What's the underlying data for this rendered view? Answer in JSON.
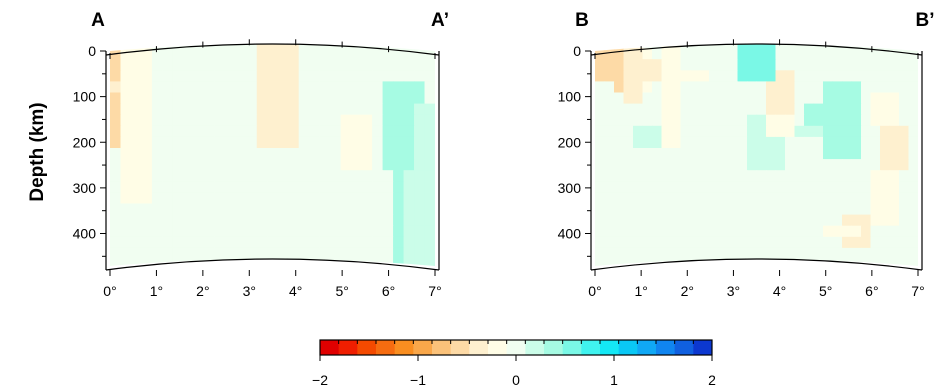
{
  "chart_data": {
    "type": "heatmap",
    "ylabel": "Depth (km)",
    "y_ticks": [
      0,
      100,
      200,
      300,
      400
    ],
    "y_range": [
      0,
      480
    ],
    "x_ticks": [
      "0°",
      "1°",
      "2°",
      "3°",
      "4°",
      "5°",
      "6°",
      "7°"
    ],
    "x_range": [
      0,
      7
    ],
    "colorbar": {
      "ticks": [
        "−2",
        "−1",
        "0",
        "1",
        "2"
      ],
      "range": [
        -2,
        2
      ],
      "colors": [
        "#e00000",
        "#ef1e00",
        "#f44a00",
        "#f66c10",
        "#f98e20",
        "#f9a74a",
        "#fbc27a",
        "#fddaa6",
        "#fef0cf",
        "#fffde6",
        "#f1fef1",
        "#cbfde9",
        "#a6fbe3",
        "#7af8e6",
        "#40f3ef",
        "#14e8f5",
        "#0ac8f5",
        "#10a8f5",
        "#1085f0",
        "#1060e0",
        "#0c38d0"
      ]
    },
    "sections": [
      {
        "start_label": "A",
        "end_label": "A’",
        "cols": 31,
        "rows": 20,
        "grid_ranges": [
          "1,0,3,0,6,-0.5",
          "5,0,7,0,6,-0.3",
          "8,4,9,7,9,0.3",
          "9,7,11,8,11,0.3",
          "0,19,20,30,30,0",
          "0,19,20,0,19,-0.05",
          "13,0,14,7,10,0.4",
          "14,2,16,6,8,0.6",
          "16,3,17,6,7,0.3",
          "12,5,18,9,12,0.3",
          "17,10,22,21,23,0.3",
          "18,10,21,19,20,0.4",
          "15,13,18,20,22,0.2",
          "20,12,25,22,24,0.35",
          "22,13,24,20,21,0.5",
          "0,24,20,26,30,0",
          "4,25,6,27,29,0.3",
          "6,26,8,28,30,0.2",
          "0,9,3,0,3,-0.6",
          "0,1,2,1,2,-0.7",
          "1,1,2,2,3,-0.6",
          "3,1,5,1,3,-0.6",
          "4,4,9,0,2,-0.3",
          "0,14,10,1,3,-0.1",
          "0,9,13,14,17,-0.3",
          "7,11,16,22,24,-0.1",
          "2,0,4,10,11,0.2",
          "3,0,8,4,6,-0.3",
          "4,1,6,8,9,-0.4",
          "6,2,9,10,14,-0.4",
          "8,3,9,12,14,-0.4",
          "1,0,3,16,18,0.2",
          "3,0,4,17,18,-0.4",
          "7,3,5,19,20,0.2",
          "10,8,15,27,29,0.3",
          "4,11,12,26,28,0.3",
          "18,6,10,0,3,0.2",
          "20,6,9,0,2,-0.3",
          "19,10,13,19,21,0.3",
          "17,2,6,22,24,-0.2",
          "3,0,2,25,27,0.2",
          "3,2,4,25,26,0.4",
          "12,1,3,26,28,0.3"
        ]
      },
      {
        "start_label": "B",
        "end_label": "B’",
        "cols": 34,
        "rows": 20,
        "grid_ranges": [
          "0,19,20,33,33,0.3",
          "0,3,18,30,33,0.4",
          "5,13,18,28,31,0.5",
          "0,19,20,0,33,-0.05",
          "1,3,7,0,3,-0.2",
          "1,4,7,4,5,-0.1",
          "3,3,5,8,11,-0.2",
          "3,7,9,18,20,-0.3",
          "5,7,12,29,31,-0.2",
          "8,11,14,30,32,-0.3",
          "0,3,6,0,2,-0.6",
          "0,4,8,2,3,-0.5",
          "0,5,10,3,4,-0.4",
          "2,3,4,5,6,-0.3",
          "4,2,9,12,16,-0.2",
          "2,3,8,15,17,0.4",
          "3,0,10,6,8,0.4",
          "3,1,9,9,11,0.3",
          "3,2,7,12,14,0.3",
          "4,0,2,15,17,0.2",
          "3,0,3,20,22,0.2",
          "6,8,11,22,25,0.3",
          "10,5,9,25,27,0.2",
          "8,8,12,21,23,0.2",
          "7,11,16,16,19,0.2",
          "10,7,13,25,28,-0.2",
          "0,3,5,15,18,0.5",
          "3,0,2,22,24,0.3",
          "4,10,11,24,27,0.4",
          "6,3,5,29,31,-0.4",
          "3,0,2,24,26,0.5",
          "12,6,9,28,31,0.4",
          "0,9,12,7,8,-0.15",
          "6,1,2,21,23,0.6",
          "5,0,2,28,30,0.5",
          "16,18,20,26,28,-0.4",
          "17,17,19,24,27,-0.2",
          "12,16,19,29,31,-0.2",
          "3,2,4,4,6,0.3",
          "8,9,11,4,6,0.2",
          "7,8,10,18,20,-0.15",
          "15,6,8,5,6,0.5",
          "11,8,10,10,11,0.3"
        ]
      }
    ]
  }
}
